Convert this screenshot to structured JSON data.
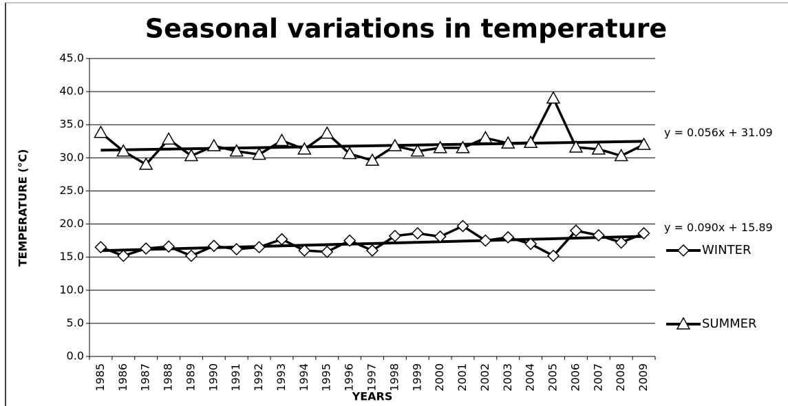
{
  "chart_data": {
    "type": "line",
    "title": "Seasonal variations in temperature",
    "x_label": "YEARS",
    "y_label": "TEMPERATURE (°C)",
    "categories": [
      "1985",
      "1986",
      "1987",
      "1988",
      "1989",
      "1990",
      "1991",
      "1992",
      "1993",
      "1994",
      "1995",
      "1996",
      "1997",
      "1998",
      "1999",
      "2000",
      "2001",
      "2002",
      "2003",
      "2004",
      "2005",
      "2006",
      "2007",
      "2008",
      "2009"
    ],
    "series": [
      {
        "name": "WINTER",
        "color": "#000000",
        "marker": "diamond",
        "values": [
          16.5,
          15.2,
          16.3,
          16.6,
          15.2,
          16.7,
          16.2,
          16.5,
          17.7,
          16.0,
          15.8,
          17.5,
          16.0,
          18.2,
          18.6,
          18.1,
          19.7,
          17.5,
          18.0,
          17.0,
          15.2,
          19.0,
          18.3,
          17.2,
          18.6
        ],
        "trendline": {
          "label": "y = 0.090x + 15.89",
          "slope": 0.09,
          "intercept": 15.89
        }
      },
      {
        "name": "SUMMER",
        "color": "#000000",
        "marker": "triangle",
        "values": [
          33.8,
          31.0,
          29.0,
          32.8,
          30.3,
          31.8,
          31.0,
          30.5,
          32.6,
          31.3,
          33.7,
          30.6,
          29.6,
          31.8,
          31.0,
          31.5,
          31.5,
          33.0,
          32.2,
          32.3,
          39.0,
          31.6,
          31.3,
          30.3,
          32.0
        ],
        "trendline": {
          "label": "y = 0.056x + 31.09",
          "slope": 0.056,
          "intercept": 31.09
        }
      }
    ],
    "ylim": [
      0,
      45
    ],
    "yticks": [
      {
        "value": 0,
        "label": "0.0"
      },
      {
        "value": 5,
        "label": "5.0"
      },
      {
        "value": 10,
        "label": "10.0"
      },
      {
        "value": 15,
        "label": "15.0"
      },
      {
        "value": 20,
        "label": "20.0"
      },
      {
        "value": 25,
        "label": "25.0"
      },
      {
        "value": 30,
        "label": "30.0"
      },
      {
        "value": 35,
        "label": "35.0"
      },
      {
        "value": 40,
        "label": "40.0"
      },
      {
        "value": 45,
        "label": "45.0"
      }
    ],
    "grid": true,
    "legend": "right"
  }
}
